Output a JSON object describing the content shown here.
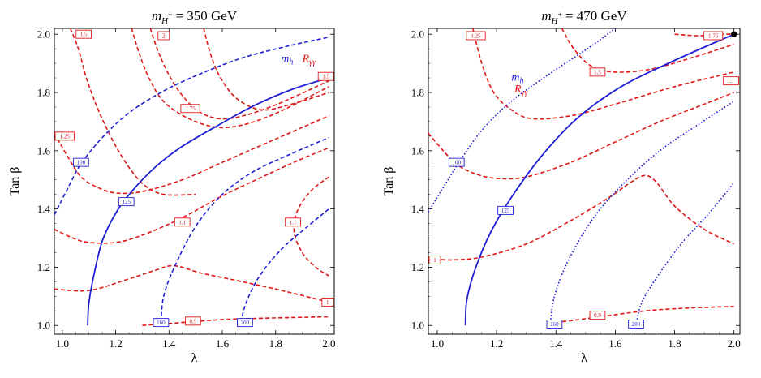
{
  "figure": {
    "colors": {
      "mh": "#1f1fd6",
      "ryy": "#e01818",
      "frame": "#000000",
      "point": "#000000"
    }
  },
  "chart_data": [
    {
      "type": "contour",
      "title": "m_{H^+} = 350 GeV",
      "title_main": "m",
      "title_sub": "H",
      "title_sup": "+",
      "title_value": " = 350 GeV",
      "xlabel": "λ",
      "ylabel": "Tan β",
      "xlim": [
        0.97,
        2.02
      ],
      "ylim": [
        0.97,
        2.02
      ],
      "xticks": [
        1.0,
        1.2,
        1.4,
        1.6,
        1.8,
        2.0
      ],
      "xtick_labels": [
        "1.0",
        "1.2",
        "1.4",
        "1.6",
        "1.8",
        "2.0"
      ],
      "yticks": [
        1.0,
        1.2,
        1.4,
        1.6,
        1.8,
        2.0
      ],
      "ytick_labels": [
        "1.0",
        "1.2",
        "1.4",
        "1.6",
        "1.8",
        "2.0"
      ],
      "legend": {
        "mh": "m",
        "mh_sub": "h",
        "ryy": "R",
        "ryy_sub": "γγ",
        "mh_pos": [
          1.82,
          1.905
        ],
        "ryy_pos": [
          1.9,
          1.905
        ]
      },
      "mh_contours": [
        {
          "label": "100",
          "style": "dashed",
          "label_at": [
            1.07,
            1.56
          ],
          "points": [
            [
              0.97,
              1.38
            ],
            [
              1.02,
              1.47
            ],
            [
              1.07,
              1.555
            ],
            [
              1.15,
              1.645
            ],
            [
              1.25,
              1.73
            ],
            [
              1.38,
              1.805
            ],
            [
              1.52,
              1.865
            ],
            [
              1.68,
              1.92
            ],
            [
              1.85,
              1.96
            ],
            [
              2.0,
              1.99
            ]
          ]
        },
        {
          "label": "125",
          "style": "solid",
          "label_at": [
            1.24,
            1.425
          ],
          "points": [
            [
              1.095,
              1.0
            ],
            [
              1.1,
              1.08
            ],
            [
              1.12,
              1.18
            ],
            [
              1.15,
              1.29
            ],
            [
              1.2,
              1.385
            ],
            [
              1.26,
              1.46
            ],
            [
              1.35,
              1.545
            ],
            [
              1.45,
              1.615
            ],
            [
              1.58,
              1.685
            ],
            [
              1.72,
              1.755
            ],
            [
              1.86,
              1.81
            ],
            [
              2.0,
              1.85
            ]
          ]
        },
        {
          "label": "160",
          "style": "dashed",
          "label_at": [
            1.37,
            1.01
          ],
          "points": [
            [
              1.37,
              1.01
            ],
            [
              1.38,
              1.1
            ],
            [
              1.42,
              1.2
            ],
            [
              1.5,
              1.34
            ],
            [
              1.6,
              1.45
            ],
            [
              1.72,
              1.53
            ],
            [
              1.86,
              1.59
            ],
            [
              2.0,
              1.645
            ]
          ]
        },
        {
          "label": "200",
          "style": "dashed",
          "label_at": [
            1.685,
            1.01
          ],
          "points": [
            [
              1.67,
              1.01
            ],
            [
              1.69,
              1.08
            ],
            [
              1.74,
              1.17
            ],
            [
              1.82,
              1.26
            ],
            [
              1.92,
              1.34
            ],
            [
              2.0,
              1.4
            ]
          ]
        }
      ],
      "ryy_contours": [
        {
          "label": "1.5",
          "label_at": [
            1.08,
            2.0
          ],
          "points": [
            [
              1.03,
              2.02
            ],
            [
              1.06,
              1.95
            ],
            [
              1.09,
              1.85
            ],
            [
              1.13,
              1.75
            ],
            [
              1.17,
              1.67
            ],
            [
              1.21,
              1.6
            ],
            [
              1.26,
              1.53
            ],
            [
              1.31,
              1.48
            ],
            [
              1.38,
              1.45
            ],
            [
              1.5,
              1.45
            ]
          ]
        },
        {
          "label": "2",
          "label_at": [
            1.38,
            1.995
          ],
          "points": [
            [
              1.33,
              2.02
            ],
            [
              1.36,
              1.94
            ],
            [
              1.4,
              1.86
            ],
            [
              1.45,
              1.79
            ],
            [
              1.52,
              1.73
            ],
            [
              1.62,
              1.71
            ],
            [
              1.78,
              1.75
            ],
            [
              2.0,
              1.84
            ]
          ]
        },
        {
          "label": "1.75",
          "label_at": [
            1.48,
            1.745
          ],
          "points": [
            [
              1.26,
              2.02
            ],
            [
              1.29,
              1.93
            ],
            [
              1.33,
              1.84
            ],
            [
              1.39,
              1.76
            ],
            [
              1.5,
              1.7
            ],
            [
              1.62,
              1.68
            ],
            [
              1.78,
              1.72
            ],
            [
              2.0,
              1.82
            ]
          ]
        },
        {
          "label": "1.5",
          "label_at": [
            1.99,
            1.855
          ],
          "points": [
            [
              1.53,
              2.02
            ],
            [
              1.56,
              1.92
            ],
            [
              1.6,
              1.84
            ],
            [
              1.66,
              1.775
            ],
            [
              1.75,
              1.74
            ],
            [
              1.86,
              1.76
            ],
            [
              2.0,
              1.8
            ]
          ]
        },
        {
          "label": "1.25",
          "label_at": [
            0.99,
            1.65
          ],
          "points": [
            [
              0.97,
              1.66
            ],
            [
              1.02,
              1.58
            ],
            [
              1.07,
              1.51
            ],
            [
              1.13,
              1.475
            ],
            [
              1.2,
              1.455
            ],
            [
              1.3,
              1.46
            ],
            [
              1.45,
              1.5
            ],
            [
              1.6,
              1.56
            ],
            [
              1.8,
              1.64
            ],
            [
              2.0,
              1.72
            ]
          ]
        },
        {
          "label": "1.1",
          "label_at": [
            1.45,
            1.355
          ],
          "points": [
            [
              0.97,
              1.33
            ],
            [
              1.04,
              1.3
            ],
            [
              1.1,
              1.285
            ],
            [
              1.2,
              1.285
            ],
            [
              1.3,
              1.31
            ],
            [
              1.45,
              1.37
            ],
            [
              1.6,
              1.445
            ],
            [
              1.75,
              1.51
            ],
            [
              1.88,
              1.565
            ],
            [
              2.0,
              1.61
            ]
          ]
        },
        {
          "label": "1.1",
          "label_at": [
            1.865,
            1.355
          ],
          "points": [
            [
              2.0,
              1.51
            ],
            [
              1.93,
              1.46
            ],
            [
              1.88,
              1.39
            ],
            [
              1.87,
              1.32
            ],
            [
              1.9,
              1.25
            ],
            [
              1.95,
              1.2
            ],
            [
              2.0,
              1.17
            ]
          ]
        },
        {
          "label": "1",
          "label_at": [
            1.995,
            1.08
          ],
          "points": [
            [
              0.97,
              1.125
            ],
            [
              1.1,
              1.12
            ],
            [
              1.25,
              1.16
            ],
            [
              1.35,
              1.19
            ],
            [
              1.42,
              1.205
            ],
            [
              1.52,
              1.18
            ],
            [
              1.65,
              1.155
            ],
            [
              1.8,
              1.125
            ],
            [
              2.0,
              1.08
            ]
          ]
        },
        {
          "label": "0.9",
          "label_at": [
            1.49,
            1.015
          ],
          "points": [
            [
              1.3,
              1.0
            ],
            [
              1.45,
              1.01
            ],
            [
              1.6,
              1.02
            ],
            [
              1.75,
              1.025
            ],
            [
              2.0,
              1.03
            ]
          ]
        }
      ],
      "marker": null
    },
    {
      "type": "contour",
      "title": "m_{H^+} = 470 GeV",
      "title_main": "m",
      "title_sub": "H",
      "title_sup": "+",
      "title_value": " = 470 GeV",
      "xlabel": "λ",
      "ylabel": "Tan β",
      "xlim": [
        0.97,
        2.02
      ],
      "ylim": [
        0.97,
        2.02
      ],
      "xticks": [
        1.0,
        1.2,
        1.4,
        1.6,
        1.8,
        2.0
      ],
      "xtick_labels": [
        "1.0",
        "1.2",
        "1.4",
        "1.6",
        "1.8",
        "2.0"
      ],
      "yticks": [
        1.0,
        1.2,
        1.4,
        1.6,
        1.8,
        2.0
      ],
      "ytick_labels": [
        "1.0",
        "1.2",
        "1.4",
        "1.6",
        "1.8",
        "2.0"
      ],
      "legend": {
        "mh": "m",
        "mh_sub": "h",
        "ryy": "R",
        "ryy_sub": "γγ",
        "mh_pos": [
          1.25,
          1.84
        ],
        "ryy_pos": [
          1.26,
          1.8
        ]
      },
      "mh_contours": [
        {
          "label": "100",
          "style": "dotted",
          "label_at": [
            1.065,
            1.56
          ],
          "points": [
            [
              0.97,
              1.39
            ],
            [
              1.03,
              1.49
            ],
            [
              1.08,
              1.57
            ],
            [
              1.15,
              1.67
            ],
            [
              1.25,
              1.77
            ],
            [
              1.38,
              1.865
            ],
            [
              1.52,
              1.96
            ],
            [
              1.6,
              2.02
            ]
          ]
        },
        {
          "label": "125",
          "style": "solid",
          "label_at": [
            1.23,
            1.395
          ],
          "points": [
            [
              1.095,
              1.0
            ],
            [
              1.1,
              1.09
            ],
            [
              1.13,
              1.2
            ],
            [
              1.18,
              1.32
            ],
            [
              1.25,
              1.44
            ],
            [
              1.35,
              1.58
            ],
            [
              1.47,
              1.71
            ],
            [
              1.62,
              1.82
            ],
            [
              1.8,
              1.91
            ],
            [
              2.0,
              2.0
            ]
          ]
        },
        {
          "label": "160",
          "style": "dotted",
          "label_at": [
            1.395,
            1.005
          ],
          "points": [
            [
              1.38,
              1.0
            ],
            [
              1.395,
              1.1
            ],
            [
              1.44,
              1.22
            ],
            [
              1.52,
              1.36
            ],
            [
              1.62,
              1.48
            ],
            [
              1.75,
              1.6
            ],
            [
              1.88,
              1.69
            ],
            [
              2.0,
              1.77
            ]
          ]
        },
        {
          "label": "200",
          "style": "dotted",
          "label_at": [
            1.67,
            1.005
          ],
          "points": [
            [
              1.67,
              1.0
            ],
            [
              1.69,
              1.08
            ],
            [
              1.75,
              1.18
            ],
            [
              1.83,
              1.29
            ],
            [
              1.92,
              1.39
            ],
            [
              2.0,
              1.49
            ]
          ]
        }
      ],
      "ryy_contours": [
        {
          "label": "1.25",
          "label_at": [
            1.13,
            1.995
          ],
          "points": [
            [
              1.12,
              2.02
            ],
            [
              1.15,
              1.9
            ],
            [
              1.19,
              1.8
            ],
            [
              1.25,
              1.74
            ],
            [
              1.32,
              1.71
            ],
            [
              1.45,
              1.72
            ],
            [
              1.6,
              1.76
            ],
            [
              1.8,
              1.82
            ],
            [
              2.0,
              1.87
            ]
          ]
        },
        {
          "label": "1.75",
          "label_at": [
            1.93,
            1.995
          ],
          "points": [
            [
              1.8,
              2.0
            ],
            [
              1.88,
              1.995
            ],
            [
              1.96,
              2.0
            ],
            [
              2.0,
              2.0
            ]
          ]
        },
        {
          "label": "1.5",
          "label_at": [
            1.54,
            1.87
          ],
          "points": [
            [
              1.42,
              2.02
            ],
            [
              1.46,
              1.95
            ],
            [
              1.52,
              1.89
            ],
            [
              1.6,
              1.87
            ],
            [
              1.72,
              1.88
            ],
            [
              1.86,
              1.92
            ],
            [
              2.0,
              1.965
            ]
          ]
        },
        {
          "label": "1.1",
          "label_at": [
            1.99,
            1.84
          ],
          "points": [
            [
              0.97,
              1.66
            ],
            [
              1.02,
              1.6
            ],
            [
              1.07,
              1.55
            ],
            [
              1.13,
              1.52
            ],
            [
              1.2,
              1.505
            ],
            [
              1.3,
              1.51
            ],
            [
              1.45,
              1.56
            ],
            [
              1.6,
              1.63
            ],
            [
              1.75,
              1.7
            ],
            [
              1.9,
              1.76
            ],
            [
              2.0,
              1.8
            ]
          ]
        },
        {
          "label": "1",
          "label_at": [
            0.99,
            1.225
          ],
          "points": [
            [
              0.97,
              1.23
            ],
            [
              1.05,
              1.225
            ],
            [
              1.15,
              1.235
            ],
            [
              1.3,
              1.28
            ],
            [
              1.45,
              1.36
            ],
            [
              1.58,
              1.44
            ],
            [
              1.65,
              1.49
            ],
            [
              1.7,
              1.515
            ],
            [
              1.74,
              1.49
            ],
            [
              1.8,
              1.41
            ],
            [
              1.9,
              1.33
            ],
            [
              2.0,
              1.28
            ]
          ]
        },
        {
          "label": "0.9",
          "label_at": [
            1.54,
            1.035
          ],
          "points": [
            [
              1.4,
              1.01
            ],
            [
              1.55,
              1.03
            ],
            [
              1.7,
              1.05
            ],
            [
              1.85,
              1.06
            ],
            [
              2.0,
              1.065
            ]
          ]
        }
      ],
      "marker": {
        "x": 2.0,
        "y": 2.0
      }
    }
  ]
}
